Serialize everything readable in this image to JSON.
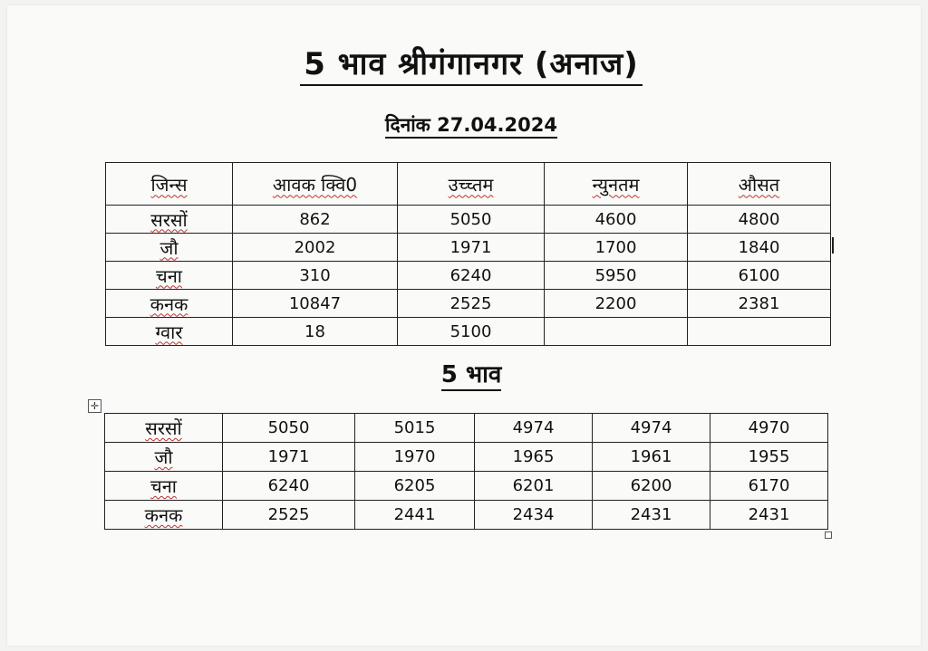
{
  "title": "5 भाव श्रीगंगानगर (अनाज)",
  "date": "दिनांक 27.04.2024",
  "main_table": {
    "headers": [
      "जिन्स",
      "आवक क्वि0",
      "उच्च्तम",
      "न्युनतम",
      "औसत"
    ],
    "rows": [
      {
        "label": "सरसों",
        "values": [
          "862",
          "5050",
          "4600",
          "4800"
        ]
      },
      {
        "label": "जौ",
        "values": [
          "2002",
          "1971",
          "1700",
          "1840"
        ]
      },
      {
        "label": "चना",
        "values": [
          "310",
          "6240",
          "5950",
          "6100"
        ]
      },
      {
        "label": "कनक",
        "values": [
          "10847",
          "2525",
          "2200",
          "2381"
        ]
      },
      {
        "label": "ग्वार",
        "values": [
          "18",
          "5100",
          "",
          ""
        ]
      }
    ]
  },
  "bhav_title": "5 भाव",
  "bhav_table": {
    "rows": [
      {
        "label": "सरसों",
        "values": [
          "5050",
          "5015",
          "4974",
          "4974",
          "4970"
        ]
      },
      {
        "label": "जौ",
        "values": [
          "1971",
          "1970",
          "1965",
          "1961",
          "1955"
        ]
      },
      {
        "label": "चना",
        "values": [
          "6240",
          "6205",
          "6201",
          "6200",
          "6170"
        ]
      },
      {
        "label": "कनक",
        "values": [
          "2525",
          "2441",
          "2434",
          "2431",
          "2431"
        ]
      }
    ]
  },
  "icons": {
    "move_handle": "move-icon",
    "resize_handle": "resize-handle-icon"
  }
}
